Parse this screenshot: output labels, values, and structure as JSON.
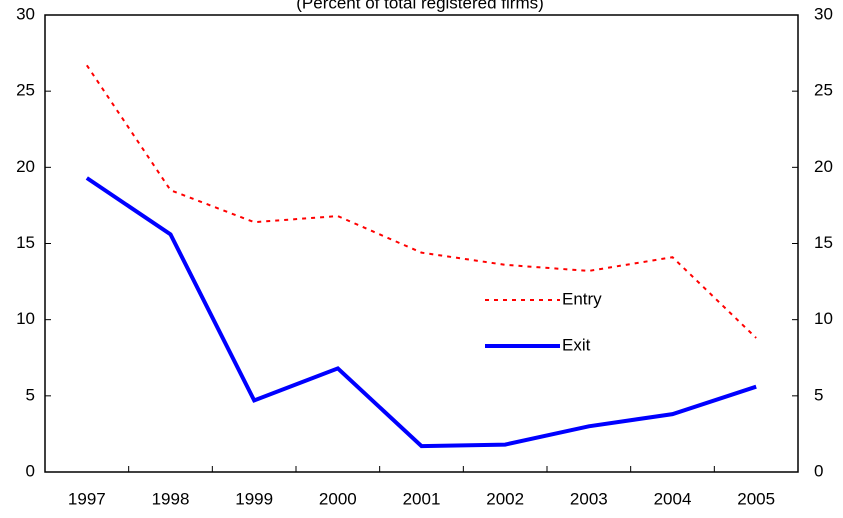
{
  "chart_data": {
    "type": "line",
    "subtitle": "(Percent of total registered firms)",
    "categories": [
      "1997",
      "1998",
      "1999",
      "2000",
      "2001",
      "2002",
      "2003",
      "2004",
      "2005"
    ],
    "series": [
      {
        "name": "Entry",
        "color": "#ff0000",
        "dash": true,
        "values": [
          26.7,
          18.5,
          16.4,
          16.8,
          14.4,
          13.6,
          13.2,
          14.1,
          8.8
        ]
      },
      {
        "name": "Exit",
        "color": "#0000ff",
        "dash": false,
        "values": [
          19.3,
          15.6,
          4.7,
          6.8,
          1.7,
          1.8,
          3.0,
          3.8,
          5.6
        ]
      }
    ],
    "ylim": [
      0,
      30
    ],
    "yticks": [
      0,
      5,
      10,
      15,
      20,
      25,
      30
    ],
    "y2lim": [
      0,
      30
    ],
    "y2ticks": [
      0,
      5,
      10,
      15,
      20,
      25,
      30
    ],
    "grid": false
  }
}
